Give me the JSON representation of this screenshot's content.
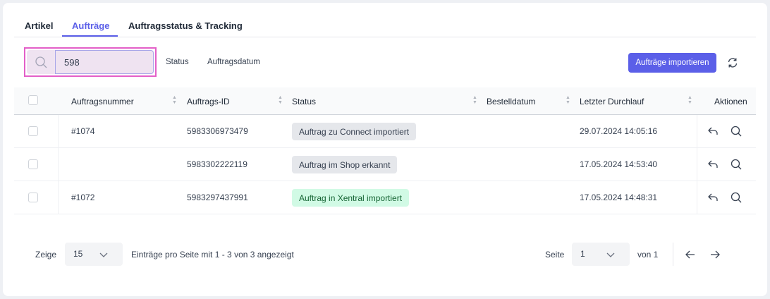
{
  "tabs": [
    {
      "label": "Artikel"
    },
    {
      "label": "Aufträge",
      "active": true
    },
    {
      "label": "Auftragsstatus & Tracking"
    }
  ],
  "search": {
    "value": "598",
    "icon": "search-icon"
  },
  "filters": {
    "status": "Status",
    "date": "Auftragsdatum"
  },
  "toolbar": {
    "import_label": "Aufträge importieren",
    "refresh_icon": "refresh-icon"
  },
  "table": {
    "headers": {
      "number": "Auftragsnummer",
      "id": "Auftrags-ID",
      "status": "Status",
      "order_date": "Bestelldatum",
      "last_run": "Letzter Durchlauf",
      "actions": "Aktionen"
    },
    "rows": [
      {
        "number": "#1074",
        "id": "5983306973479",
        "status": "Auftrag zu Connect importiert",
        "status_color": "#e5e7eb",
        "order_date": "",
        "last_run": "29.07.2024 14:05:16"
      },
      {
        "number": "",
        "id": "5983302222119",
        "status": "Auftrag im Shop erkannt",
        "status_color": "#e5e7eb",
        "order_date": "",
        "last_run": "17.05.2024 14:53:40"
      },
      {
        "number": "#1072",
        "id": "5983297437991",
        "status": "Auftrag in Xentral importiert",
        "status_color": "#d1fae5",
        "order_date": "",
        "last_run": "17.05.2024 14:48:31"
      }
    ]
  },
  "pagination": {
    "show_label": "Zeige",
    "page_size": "15",
    "summary": "Einträge pro Seite mit 1 - 3 von 3 angezeigt",
    "page_label": "Seite",
    "page": "1",
    "of_label": "von 1"
  },
  "colors": {
    "accent": "#5b5fe8",
    "highlight": "#e35fc8"
  }
}
